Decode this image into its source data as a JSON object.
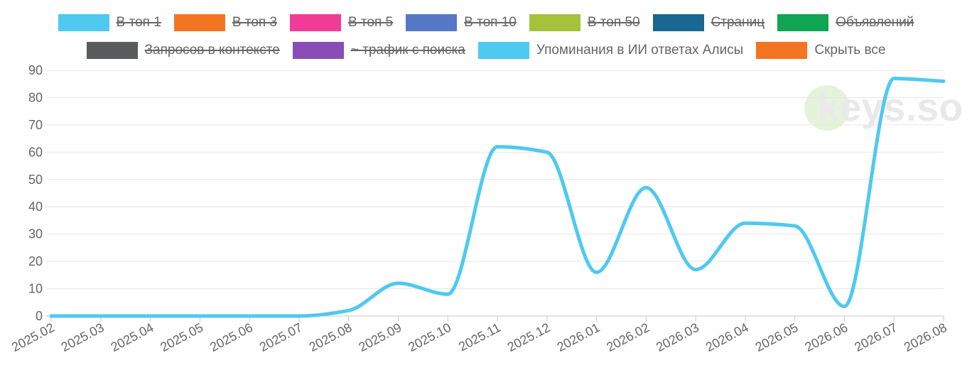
{
  "legend": {
    "items": [
      {
        "label": "В топ 1",
        "color": "#4fc9f0",
        "hidden": true
      },
      {
        "label": "В топ 3",
        "color": "#f47521",
        "hidden": true
      },
      {
        "label": "В топ 5",
        "color": "#f03c96",
        "hidden": true
      },
      {
        "label": "В топ 10",
        "color": "#5579c6",
        "hidden": true
      },
      {
        "label": "В топ 50",
        "color": "#a6c23a",
        "hidden": true
      },
      {
        "label": "Страниц",
        "color": "#186891",
        "hidden": true
      },
      {
        "label": "Объявлений",
        "color": "#0fa553",
        "hidden": true
      },
      {
        "label": "Запросов в контексте",
        "color": "#595a5c",
        "hidden": true
      },
      {
        "label": "~ трафик с поиска",
        "color": "#8a4db8",
        "hidden": true
      },
      {
        "label": "Упоминания в ИИ ответах Алисы",
        "color": "#4fc9f0",
        "hidden": false
      },
      {
        "label": "Скрыть все",
        "color": "#f47521",
        "hidden": false
      }
    ]
  },
  "watermark": {
    "text": "keys.so"
  },
  "chart_data": {
    "type": "line",
    "x": [
      "2025.02",
      "2025.03",
      "2025.04",
      "2025.05",
      "2025.06",
      "2025.07",
      "2025.08",
      "2025.09",
      "2025.10",
      "2025.11",
      "2025.12",
      "2026.01",
      "2026.02",
      "2026.03",
      "2026.04",
      "2026.05",
      "2026.06",
      "2026.07",
      "2026.08"
    ],
    "ylim": [
      0,
      90
    ],
    "yticks": [
      0,
      10,
      20,
      30,
      40,
      50,
      60,
      70,
      80,
      90
    ],
    "grid": true,
    "legend_position": "top",
    "series": [
      {
        "name": "Упоминания в ИИ ответах Алисы",
        "color": "#4fc9f0",
        "values": [
          0,
          0,
          0,
          0,
          0,
          0,
          2,
          12,
          8,
          62,
          60,
          16,
          47,
          17,
          34,
          33,
          3.5,
          87,
          86
        ]
      }
    ]
  }
}
